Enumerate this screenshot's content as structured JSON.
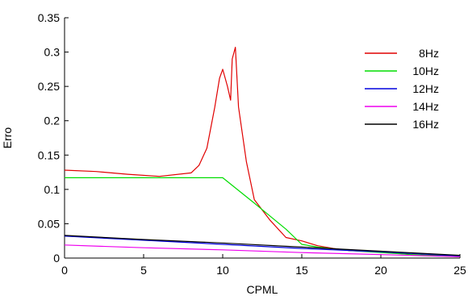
{
  "chart_data": {
    "type": "line",
    "xlabel": "CPML",
    "ylabel": "Erro",
    "xlim": [
      0,
      25
    ],
    "ylim": [
      0,
      0.35
    ],
    "xticks": [
      0,
      5,
      10,
      15,
      20,
      25
    ],
    "xtick_labels": [
      "0",
      "5",
      "10",
      "15",
      "20",
      "25"
    ],
    "yticks": [
      0,
      0.05,
      0.1,
      0.15,
      0.2,
      0.25,
      0.3,
      0.35
    ],
    "ytick_labels": [
      "0",
      "0.05",
      "0.1",
      "0.15",
      "0.2",
      "0.25",
      "0.3",
      "0.35"
    ],
    "grid": false,
    "legend_position": "top-right",
    "series": [
      {
        "name": "8Hz",
        "color": "#e00000",
        "x": [
          0,
          2,
          4,
          6,
          8,
          8.5,
          9,
          9.5,
          9.8,
          10,
          10.3,
          10.5,
          10.6,
          10.8,
          11,
          11.5,
          12,
          13,
          14,
          15,
          16,
          17,
          18,
          20,
          22,
          24,
          25
        ],
        "y": [
          0.128,
          0.126,
          0.122,
          0.119,
          0.124,
          0.135,
          0.16,
          0.22,
          0.262,
          0.275,
          0.25,
          0.23,
          0.29,
          0.307,
          0.22,
          0.14,
          0.085,
          0.055,
          0.03,
          0.025,
          0.018,
          0.014,
          0.011,
          0.009,
          0.005,
          0.003,
          0.002
        ]
      },
      {
        "name": "10Hz",
        "color": "#00dd00",
        "x": [
          0,
          2,
          4,
          6,
          8,
          10,
          12,
          14,
          15,
          16,
          18,
          20,
          22,
          24,
          25
        ],
        "y": [
          0.117,
          0.117,
          0.117,
          0.117,
          0.117,
          0.117,
          0.08,
          0.042,
          0.02,
          0.016,
          0.011,
          0.008,
          0.005,
          0.003,
          0.002
        ]
      },
      {
        "name": "12Hz",
        "color": "#0000dd",
        "x": [
          0,
          5,
          10,
          15,
          20,
          25
        ],
        "y": [
          0.032,
          0.026,
          0.02,
          0.014,
          0.009,
          0.003
        ]
      },
      {
        "name": "14Hz",
        "color": "#ee00ee",
        "x": [
          0,
          5,
          10,
          15,
          20,
          25
        ],
        "y": [
          0.019,
          0.015,
          0.012,
          0.008,
          0.005,
          0.002
        ]
      },
      {
        "name": "16Hz",
        "color": "#000000",
        "x": [
          0,
          5,
          10,
          15,
          20,
          25
        ],
        "y": [
          0.033,
          0.027,
          0.022,
          0.016,
          0.01,
          0.004
        ]
      }
    ]
  }
}
